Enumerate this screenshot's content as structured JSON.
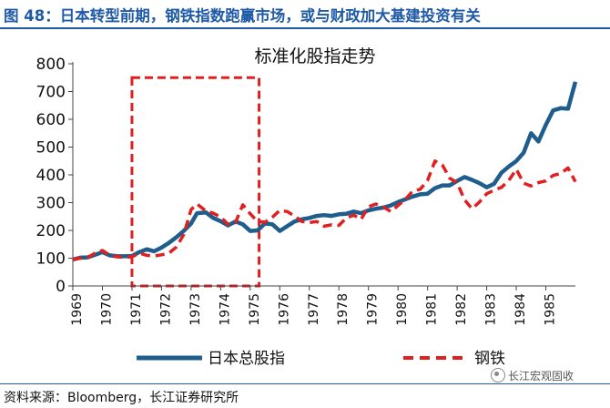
{
  "header": {
    "title": "图 48：日本转型前期，钢铁指数跑赢市场，或与财政加大基建投资有关"
  },
  "footer": {
    "source": "资料来源：Bloomberg，长江证券研究所"
  },
  "watermark": {
    "text": "长江宏观固收"
  },
  "chart_data": {
    "type": "line",
    "title": "标准化股指走势",
    "xlabel": "",
    "ylabel": "",
    "ylim": [
      0,
      800
    ],
    "xlim": [
      1969,
      1986
    ],
    "yticks": [
      0,
      100,
      200,
      300,
      400,
      500,
      600,
      700,
      800
    ],
    "xticks": [
      "1969",
      "1970",
      "1971",
      "1972",
      "1973",
      "1974",
      "1975",
      "1976",
      "1977",
      "1978",
      "1979",
      "1980",
      "1981",
      "1982",
      "1983",
      "1984",
      "1985"
    ],
    "grid": false,
    "legend_position": "bottom",
    "highlight_box": {
      "x_start": 1971.0,
      "x_end": 1975.3,
      "y_start": 0,
      "y_end": 750,
      "color": "#e02020"
    },
    "series": [
      {
        "name": "日本总股指",
        "color": "#1f5d8c",
        "style": "solid",
        "x": [
          1969.0,
          1969.25,
          1969.5,
          1969.75,
          1970.0,
          1970.25,
          1970.5,
          1970.75,
          1971.0,
          1971.25,
          1971.5,
          1971.75,
          1972.0,
          1972.25,
          1972.5,
          1972.75,
          1973.0,
          1973.2,
          1973.5,
          1973.75,
          1974.0,
          1974.25,
          1974.5,
          1974.75,
          1975.0,
          1975.25,
          1975.5,
          1975.75,
          1976.0,
          1976.25,
          1976.5,
          1976.75,
          1977.0,
          1977.25,
          1977.5,
          1977.75,
          1978.0,
          1978.25,
          1978.5,
          1978.75,
          1979.0,
          1979.25,
          1979.5,
          1979.75,
          1980.0,
          1980.25,
          1980.5,
          1980.75,
          1981.0,
          1981.25,
          1981.5,
          1981.75,
          1982.0,
          1982.25,
          1982.5,
          1982.75,
          1983.0,
          1983.25,
          1983.5,
          1983.75,
          1984.0,
          1984.25,
          1984.5,
          1984.75,
          1985.0,
          1985.25,
          1985.5,
          1985.75,
          1986.0
        ],
        "values": [
          95,
          102,
          103,
          112,
          122,
          110,
          107,
          107,
          108,
          122,
          132,
          125,
          138,
          155,
          175,
          198,
          225,
          262,
          265,
          245,
          233,
          218,
          232,
          222,
          198,
          200,
          225,
          222,
          198,
          215,
          232,
          240,
          245,
          252,
          255,
          252,
          258,
          260,
          268,
          262,
          272,
          278,
          282,
          290,
          302,
          312,
          322,
          330,
          332,
          352,
          362,
          362,
          378,
          392,
          382,
          370,
          355,
          368,
          408,
          430,
          450,
          480,
          550,
          520,
          580,
          632,
          640,
          638,
          735
        ]
      },
      {
        "name": "钢铁",
        "color": "#e02020",
        "style": "dashed",
        "x": [
          1969.0,
          1969.25,
          1969.5,
          1969.75,
          1970.0,
          1970.25,
          1970.5,
          1970.75,
          1971.0,
          1971.25,
          1971.5,
          1971.75,
          1972.0,
          1972.25,
          1972.5,
          1972.75,
          1973.0,
          1973.2,
          1973.5,
          1973.75,
          1974.0,
          1974.25,
          1974.5,
          1974.75,
          1975.0,
          1975.25,
          1975.5,
          1975.75,
          1976.0,
          1976.25,
          1976.5,
          1976.75,
          1977.0,
          1977.25,
          1977.5,
          1977.75,
          1978.0,
          1978.25,
          1978.5,
          1978.75,
          1979.0,
          1979.25,
          1979.5,
          1979.75,
          1980.0,
          1980.25,
          1980.5,
          1980.75,
          1981.0,
          1981.25,
          1981.5,
          1981.75,
          1982.0,
          1982.25,
          1982.5,
          1982.75,
          1983.0,
          1983.25,
          1983.5,
          1983.75,
          1984.0,
          1984.25,
          1984.5,
          1984.75,
          1985.0,
          1985.25,
          1985.5,
          1985.75,
          1986.0
        ],
        "values": [
          95,
          100,
          102,
          118,
          128,
          110,
          105,
          103,
          105,
          118,
          110,
          108,
          112,
          118,
          140,
          185,
          275,
          295,
          270,
          262,
          248,
          222,
          228,
          292,
          260,
          232,
          230,
          248,
          272,
          268,
          252,
          232,
          228,
          232,
          215,
          220,
          218,
          245,
          255,
          240,
          285,
          295,
          285,
          268,
          290,
          312,
          342,
          348,
          380,
          450,
          435,
          388,
          372,
          310,
          278,
          302,
          332,
          345,
          355,
          380,
          420,
          370,
          360,
          372,
          378,
          398,
          405,
          425,
          375
        ]
      }
    ]
  }
}
